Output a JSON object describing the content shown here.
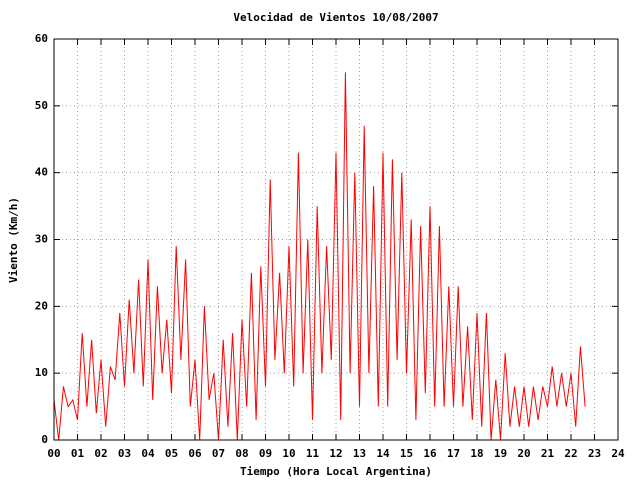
{
  "chart_data": {
    "type": "line",
    "title": "Velocidad de Vientos 10/08/2007",
    "xlabel": "Tiempo (Hora Local Argentina)",
    "ylabel": "Viento (Km/h)",
    "color": "#ff0000",
    "grid": true,
    "xlim": [
      0,
      24
    ],
    "ylim": [
      0,
      60
    ],
    "yticks": [
      0,
      10,
      20,
      30,
      40,
      50,
      60
    ],
    "xticks": [
      {
        "value": 0,
        "label": "00"
      },
      {
        "value": 1,
        "label": "01"
      },
      {
        "value": 2,
        "label": "02"
      },
      {
        "value": 3,
        "label": "03"
      },
      {
        "value": 4,
        "label": "04"
      },
      {
        "value": 5,
        "label": "05"
      },
      {
        "value": 6,
        "label": "06"
      },
      {
        "value": 7,
        "label": "07"
      },
      {
        "value": 8,
        "label": "08"
      },
      {
        "value": 9,
        "label": "09"
      },
      10,
      11,
      12,
      13,
      14,
      15,
      16,
      17,
      18,
      19,
      20,
      21,
      22,
      23,
      24
    ],
    "x": [
      0,
      0.2,
      0.4,
      0.6,
      0.8,
      1,
      1.2,
      1.4,
      1.6,
      1.8,
      2,
      2.2,
      2.4,
      2.6,
      2.8,
      3,
      3.2,
      3.4,
      3.6,
      3.8,
      4,
      4.2,
      4.4,
      4.6,
      4.8,
      5,
      5.2,
      5.4,
      5.6,
      5.8,
      6,
      6.2,
      6.4,
      6.6,
      6.8,
      7,
      7.2,
      7.4,
      7.6,
      7.8,
      8,
      8.2,
      8.4,
      8.6,
      8.8,
      9,
      9.2,
      9.4,
      9.6,
      9.8,
      10,
      10.2,
      10.4,
      10.6,
      10.8,
      11,
      11.2,
      11.4,
      11.6,
      11.8,
      12,
      12.2,
      12.4,
      12.6,
      12.8,
      13,
      13.2,
      13.4,
      13.6,
      13.8,
      14,
      14.2,
      14.4,
      14.6,
      14.8,
      15,
      15.2,
      15.4,
      15.6,
      15.8,
      16,
      16.2,
      16.4,
      16.6,
      16.8,
      17,
      17.2,
      17.4,
      17.6,
      17.8,
      18,
      18.2,
      18.4,
      18.6,
      18.8,
      19,
      19.2,
      19.4,
      19.6,
      19.8,
      20,
      20.2,
      20.4,
      20.6,
      20.8,
      21,
      21.2,
      21.4,
      21.6,
      21.8,
      22,
      22.2,
      22.4,
      22.6
    ],
    "values": [
      6,
      0,
      8,
      5,
      6,
      3,
      16,
      5,
      15,
      4,
      12,
      2,
      11,
      9,
      19,
      8,
      21,
      10,
      24,
      8,
      27,
      6,
      23,
      10,
      18,
      7,
      29,
      12,
      27,
      5,
      12,
      0,
      20,
      6,
      10,
      0,
      15,
      2,
      16,
      0,
      18,
      5,
      25,
      3,
      26,
      8,
      39,
      12,
      25,
      10,
      29,
      8,
      43,
      10,
      30,
      3,
      35,
      10,
      29,
      12,
      43,
      3,
      55,
      10,
      40,
      5,
      47,
      10,
      38,
      5,
      43,
      5,
      42,
      12,
      40,
      10,
      33,
      3,
      32,
      7,
      35,
      5,
      32,
      5,
      23,
      5,
      23,
      5,
      17,
      3,
      19,
      2,
      19,
      0,
      9,
      0,
      13,
      2,
      8,
      2,
      8,
      2,
      8,
      3,
      8,
      5,
      11,
      5,
      10,
      5,
      10,
      2,
      14,
      5
    ]
  }
}
